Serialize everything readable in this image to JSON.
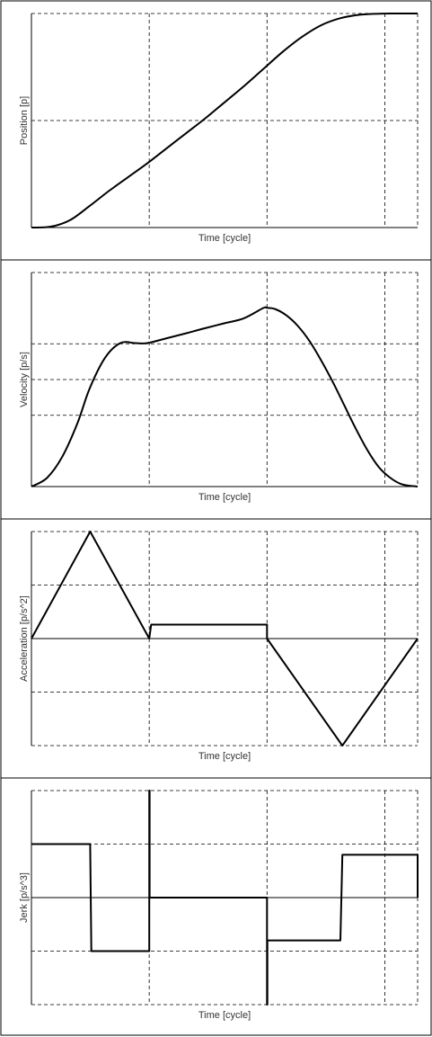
{
  "chart_data": [
    {
      "type": "line",
      "xlabel": "Time [cycle]",
      "ylabel": "Position [p]",
      "xlim": [
        0,
        1
      ],
      "ylim": [
        0,
        1
      ],
      "grid": true,
      "series": [
        {
          "x": [
            0,
            0.05,
            0.1,
            0.15,
            0.2,
            0.25,
            0.3,
            0.35,
            0.4,
            0.45,
            0.5,
            0.55,
            0.6,
            0.65,
            0.7,
            0.75,
            0.8,
            0.85,
            0.9,
            0.93,
            0.96,
            1.0
          ],
          "y": [
            0,
            0.004,
            0.035,
            0.1,
            0.17,
            0.235,
            0.3,
            0.37,
            0.44,
            0.51,
            0.585,
            0.66,
            0.74,
            0.82,
            0.89,
            0.945,
            0.978,
            0.994,
            0.999,
            1.0,
            1.0,
            1.0
          ]
        }
      ]
    },
    {
      "type": "line",
      "xlabel": "Time [cycle]",
      "ylabel": "Velocity [p/s]",
      "xlim": [
        0,
        1
      ],
      "ylim": [
        0,
        1
      ],
      "grid": true,
      "series": [
        {
          "x": [
            0,
            0.04,
            0.08,
            0.12,
            0.15,
            0.19,
            0.23,
            0.27,
            0.3,
            0.35,
            0.4,
            0.45,
            0.5,
            0.55,
            0.6,
            0.61,
            0.63,
            0.66,
            0.69,
            0.72,
            0.75,
            0.78,
            0.81,
            0.84,
            0.87,
            0.9,
            0.93,
            0.96,
            1.0
          ],
          "y": [
            0,
            0.04,
            0.14,
            0.3,
            0.455,
            0.6,
            0.67,
            0.67,
            0.67,
            0.693,
            0.716,
            0.74,
            0.763,
            0.786,
            0.834,
            0.835,
            0.83,
            0.8,
            0.75,
            0.68,
            0.59,
            0.49,
            0.38,
            0.27,
            0.17,
            0.09,
            0.04,
            0.01,
            0
          ]
        }
      ]
    },
    {
      "type": "line",
      "xlabel": "Time [cycle]",
      "ylabel": "Acceleration [p/s^2]",
      "xlim": [
        0,
        1
      ],
      "ylim": [
        -1,
        1
      ],
      "grid": true,
      "series": [
        {
          "x": [
            0,
            0.152,
            0.305,
            0.31,
            0.61,
            0.61,
            0.805,
            1.0
          ],
          "y": [
            0,
            1,
            0,
            0.13,
            0.13,
            0,
            -1,
            0
          ]
        }
      ]
    },
    {
      "type": "line",
      "xlabel": "Time [cycle]",
      "ylabel": "Jerk [p/s^3]",
      "xlim": [
        0,
        1
      ],
      "ylim": [
        -1,
        1
      ],
      "grid": true,
      "series": [
        {
          "x": [
            0,
            0.152,
            0.155,
            0.305,
            0.305,
            0.306,
            0.306,
            0.61,
            0.61,
            0.611,
            0.611,
            0.8,
            0.805,
            1.0,
            1.0
          ],
          "y": [
            0.5,
            0.5,
            -0.5,
            -0.5,
            1,
            1,
            0,
            0,
            -1,
            -1,
            -0.4,
            -0.4,
            0.4,
            0.4,
            0
          ]
        }
      ]
    }
  ]
}
